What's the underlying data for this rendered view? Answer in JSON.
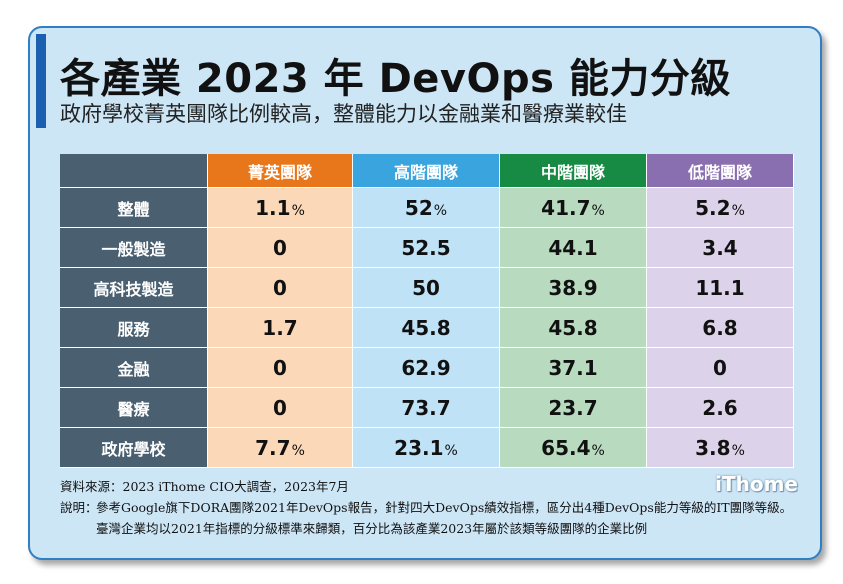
{
  "title": "各產業 2023 年 DevOps 能力分級",
  "subtitle": "政府學校菁英團隊比例較高，整體能力以金融業和醫療業較佳",
  "chart_data": {
    "type": "table",
    "columns": [
      "菁英團隊",
      "高階團隊",
      "中階團隊",
      "低階團隊"
    ],
    "rows": [
      {
        "label": "整體",
        "values": [
          "1.1",
          "52",
          "41.7",
          "5.2"
        ],
        "pct": true
      },
      {
        "label": "一般製造",
        "values": [
          "0",
          "52.5",
          "44.1",
          "3.4"
        ],
        "pct": false
      },
      {
        "label": "高科技製造",
        "values": [
          "0",
          "50",
          "38.9",
          "11.1"
        ],
        "pct": false
      },
      {
        "label": "服務",
        "values": [
          "1.7",
          "45.8",
          "45.8",
          "6.8"
        ],
        "pct": false
      },
      {
        "label": "金融",
        "values": [
          "0",
          "62.9",
          "37.1",
          "0"
        ],
        "pct": false
      },
      {
        "label": "醫療",
        "values": [
          "0",
          "73.7",
          "23.7",
          "2.6"
        ],
        "pct": false
      },
      {
        "label": "政府學校",
        "values": [
          "7.7",
          "23.1",
          "65.4",
          "3.8"
        ],
        "pct": true
      }
    ],
    "unit": "%",
    "column_colors": [
      "#e8771c",
      "#39a4dd",
      "#178a43",
      "#8a6fb0"
    ],
    "cell_colors": [
      "#fbd9b8",
      "#bfe2f6",
      "#b8dbbf",
      "#dcd2ea"
    ]
  },
  "footer": {
    "source": "資料來源：2023 iThome CIO大調查，2023年7月",
    "note_label": "說明：",
    "note": "參考Google旗下DORA團隊2021年DevOps報告，針對四大DevOps績效指標，區分出4種DevOps能力等級的IT團隊等級。臺灣企業均以2021年指標的分級標準來歸類，百分比為該產業2023年屬於該類等級團隊的企業比例"
  },
  "logo": "iThome"
}
